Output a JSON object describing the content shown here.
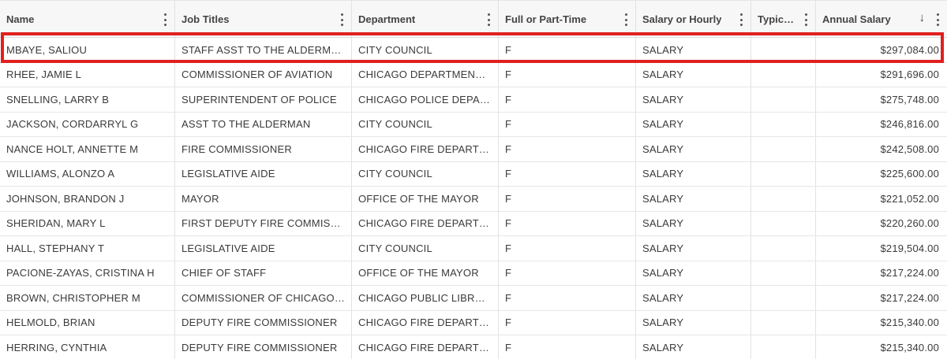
{
  "highlight_color": "#e02020",
  "columns": [
    {
      "key": "name",
      "label": "Name"
    },
    {
      "key": "job",
      "label": "Job Titles"
    },
    {
      "key": "dept",
      "label": "Department"
    },
    {
      "key": "ft",
      "label": "Full or Part-Time"
    },
    {
      "key": "sal",
      "label": "Salary or Hourly"
    },
    {
      "key": "typ",
      "label": "Typic…"
    },
    {
      "key": "annual",
      "label": "Annual Salary",
      "sort": "descending",
      "sort_icon": "arrow-down-icon"
    }
  ],
  "rows": [
    {
      "name": "MBAYE, SALIOU",
      "job": "STAFF ASST TO THE ALDERMAN",
      "dept": "CITY COUNCIL",
      "ft": "F",
      "sal": "SALARY",
      "typ": "",
      "annual": "$297,084.00",
      "highlighted": true
    },
    {
      "name": "RHEE, JAMIE L",
      "job": "COMMISSIONER OF AVIATION",
      "dept": "CHICAGO DEPARTMENT OF…",
      "ft": "F",
      "sal": "SALARY",
      "typ": "",
      "annual": "$291,696.00"
    },
    {
      "name": "SNELLING, LARRY B",
      "job": "SUPERINTENDENT OF POLICE",
      "dept": "CHICAGO POLICE DEPART…",
      "ft": "F",
      "sal": "SALARY",
      "typ": "",
      "annual": "$275,748.00"
    },
    {
      "name": "JACKSON, CORDARRYL G",
      "job": "ASST TO THE ALDERMAN",
      "dept": "CITY COUNCIL",
      "ft": "F",
      "sal": "SALARY",
      "typ": "",
      "annual": "$246,816.00"
    },
    {
      "name": "NANCE HOLT, ANNETTE M",
      "job": "FIRE COMMISSIONER",
      "dept": "CHICAGO FIRE DEPARTMENT",
      "ft": "F",
      "sal": "SALARY",
      "typ": "",
      "annual": "$242,508.00"
    },
    {
      "name": "WILLIAMS, ALONZO A",
      "job": "LEGISLATIVE AIDE",
      "dept": "CITY COUNCIL",
      "ft": "F",
      "sal": "SALARY",
      "typ": "",
      "annual": "$225,600.00"
    },
    {
      "name": "JOHNSON, BRANDON J",
      "job": "MAYOR",
      "dept": "OFFICE OF THE MAYOR",
      "ft": "F",
      "sal": "SALARY",
      "typ": "",
      "annual": "$221,052.00"
    },
    {
      "name": "SHERIDAN, MARY L",
      "job": "FIRST DEPUTY FIRE COMMISSION…",
      "dept": "CHICAGO FIRE DEPARTMENT",
      "ft": "F",
      "sal": "SALARY",
      "typ": "",
      "annual": "$220,260.00"
    },
    {
      "name": "HALL, STEPHANY T",
      "job": "LEGISLATIVE AIDE",
      "dept": "CITY COUNCIL",
      "ft": "F",
      "sal": "SALARY",
      "typ": "",
      "annual": "$219,504.00"
    },
    {
      "name": "PACIONE-ZAYAS, CRISTINA H",
      "job": "CHIEF OF STAFF",
      "dept": "OFFICE OF THE MAYOR",
      "ft": "F",
      "sal": "SALARY",
      "typ": "",
      "annual": "$217,224.00"
    },
    {
      "name": "BROWN, CHRISTOPHER M",
      "job": "COMMISSIONER OF CHICAGO PU…",
      "dept": "CHICAGO PUBLIC LIBRARY",
      "ft": "F",
      "sal": "SALARY",
      "typ": "",
      "annual": "$217,224.00"
    },
    {
      "name": "HELMOLD, BRIAN",
      "job": "DEPUTY FIRE COMMISSIONER",
      "dept": "CHICAGO FIRE DEPARTMENT",
      "ft": "F",
      "sal": "SALARY",
      "typ": "",
      "annual": "$215,340.00"
    },
    {
      "name": "HERRING, CYNTHIA",
      "job": "DEPUTY FIRE COMMISSIONER",
      "dept": "CHICAGO FIRE DEPARTMENT",
      "ft": "F",
      "sal": "SALARY",
      "typ": "",
      "annual": "$215,340.00"
    }
  ]
}
